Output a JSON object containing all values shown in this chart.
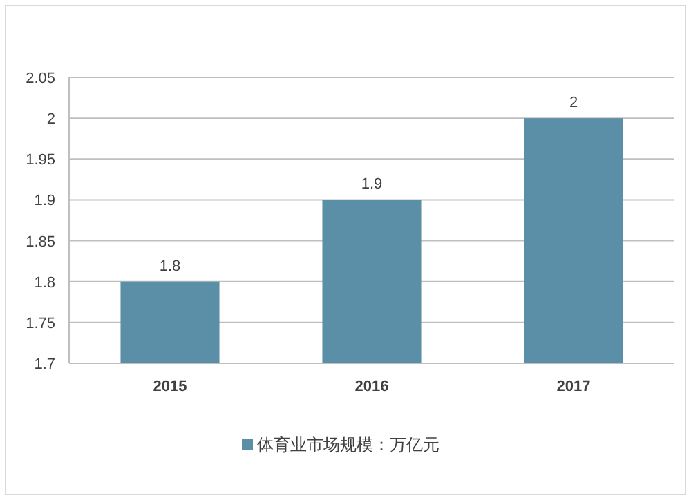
{
  "chart_data": {
    "type": "bar",
    "categories": [
      "2015",
      "2016",
      "2017"
    ],
    "series": [
      {
        "name": "体育业市场规模：万亿元",
        "color": "#5b8fa8",
        "values": [
          1.8,
          1.9,
          2
        ]
      }
    ],
    "ylim": [
      1.7,
      2.05
    ],
    "yticks": [
      1.7,
      1.75,
      1.8,
      1.85,
      1.9,
      1.95,
      2,
      2.05
    ],
    "grid": "y",
    "data_labels": true,
    "legend": "bottom"
  }
}
